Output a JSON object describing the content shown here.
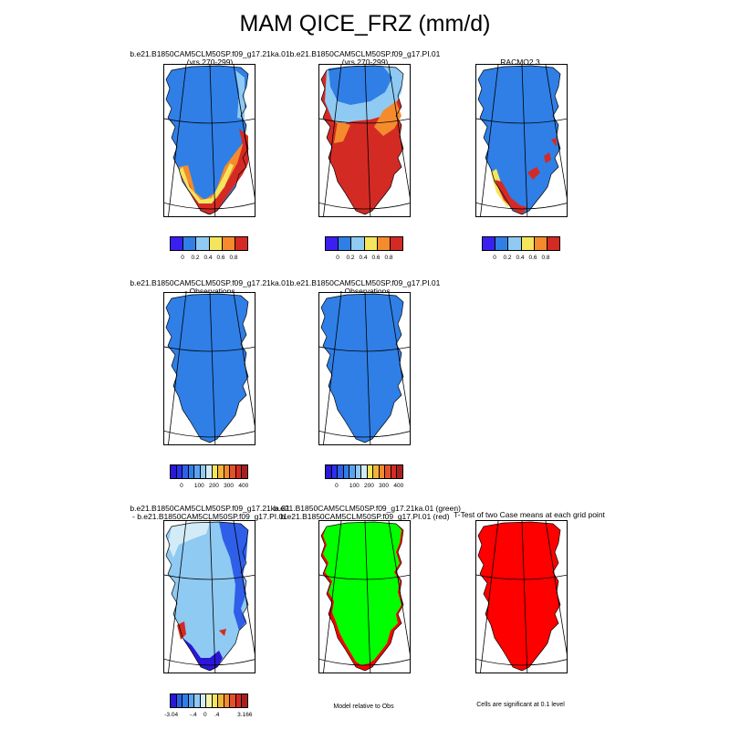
{
  "figure": {
    "title": "MAM QICE_FRZ (mm/d)"
  },
  "panels": [
    {
      "id": "p1",
      "title_l1": "b.e21.B1850CAM5CLM50SP.f09_g17.21ka.01",
      "title_l2": "(yrs 270-299)"
    },
    {
      "id": "p2",
      "title_l1": "b.e21.B1850CAM5CLM50SP.f09_g17.PI.01",
      "title_l2": "(yrs 270-299)"
    },
    {
      "id": "p3",
      "title_l1": "RACMO2.3",
      "title_l2": ""
    },
    {
      "id": "p4",
      "title_l1": "b.e21.B1850CAM5CLM50SP.f09_g17.21ka.01",
      "title_l2": "- Observations"
    },
    {
      "id": "p5",
      "title_l1": "b.e21.B1850CAM5CLM50SP.f09_g17.PI.01",
      "title_l2": "- Observations"
    },
    {
      "id": "p7",
      "title_l1": "b.e21.B1850CAM5CLM50SP.f09_g17.21ka.01",
      "title_l2": "- b.e21.B1850CAM5CLM50SP.f09_g17.PI.01"
    },
    {
      "id": "p8",
      "title_l1": "b.e21.B1850CAM5CLM50SP.f09_g17.21ka.01 (green)",
      "title_l2": "b.e21.B1850CAM5CLM50SP.f09_g17.PI.01 (red)"
    },
    {
      "id": "p9",
      "title_l1": "T-Test of two Case means at each grid point",
      "title_l2": ""
    }
  ],
  "colorbars": {
    "row1": {
      "colors": [
        "#3a1ff0",
        "#2f7fe6",
        "#8fcaf2",
        "#f4e55c",
        "#f58b2c",
        "#d42a24"
      ],
      "labels": [
        "0",
        "0.2",
        "0.4",
        "0.6",
        "0.8"
      ]
    },
    "row2": {
      "colors": [
        "#2a17d8",
        "#2a2ff0",
        "#2f5fe8",
        "#2f7fe6",
        "#5aa2ee",
        "#8fcaf2",
        "#d2ebf7",
        "#f4e55c",
        "#f2b33a",
        "#f58b2c",
        "#e2522a",
        "#d42a24",
        "#a8201e"
      ],
      "labels": [
        "0",
        "100",
        "200",
        "300",
        "400"
      ]
    },
    "row3": {
      "colors": [
        "#2a17d8",
        "#2f5fe8",
        "#2f7fe6",
        "#5aa2ee",
        "#8fcaf2",
        "#d2ebf7",
        "#f7f3b0",
        "#f4e55c",
        "#f2b33a",
        "#f58b2c",
        "#e2522a",
        "#d42a24",
        "#a8201e"
      ],
      "labels": [
        "-3.04",
        "-.4",
        "0",
        ".4",
        "3.166"
      ]
    }
  },
  "notes": {
    "model_relative": "Model relative to Obs",
    "significance": "Cells are significant at 0.1 level"
  },
  "map_colors": {
    "p1_base": "#2f7fe6",
    "p1_light": "#8fcaf2",
    "p1_yellow": "#f4e55c",
    "p1_orange": "#f58b2c",
    "p1_red": "#d42a24",
    "p2_base": "#d42a24",
    "p2_light": "#8fcaf2",
    "p2_blue": "#2f7fe6",
    "p2_orange": "#f58b2c",
    "p3_base": "#2f7fe6",
    "p3_red": "#d42a24",
    "p3_yellow": "#f4e55c",
    "p4_base": "#2f7fe6",
    "p5_base": "#2f7fe6",
    "p7_base": "#8fcaf2",
    "p7_pale": "#d2ebf7",
    "p7_blue": "#2f5fe8",
    "p7_dark": "#2a17d8",
    "p7_red": "#d42a24",
    "p8_green": "#00ff00",
    "p8_red": "#ff0000",
    "p9_red": "#ff0000"
  }
}
